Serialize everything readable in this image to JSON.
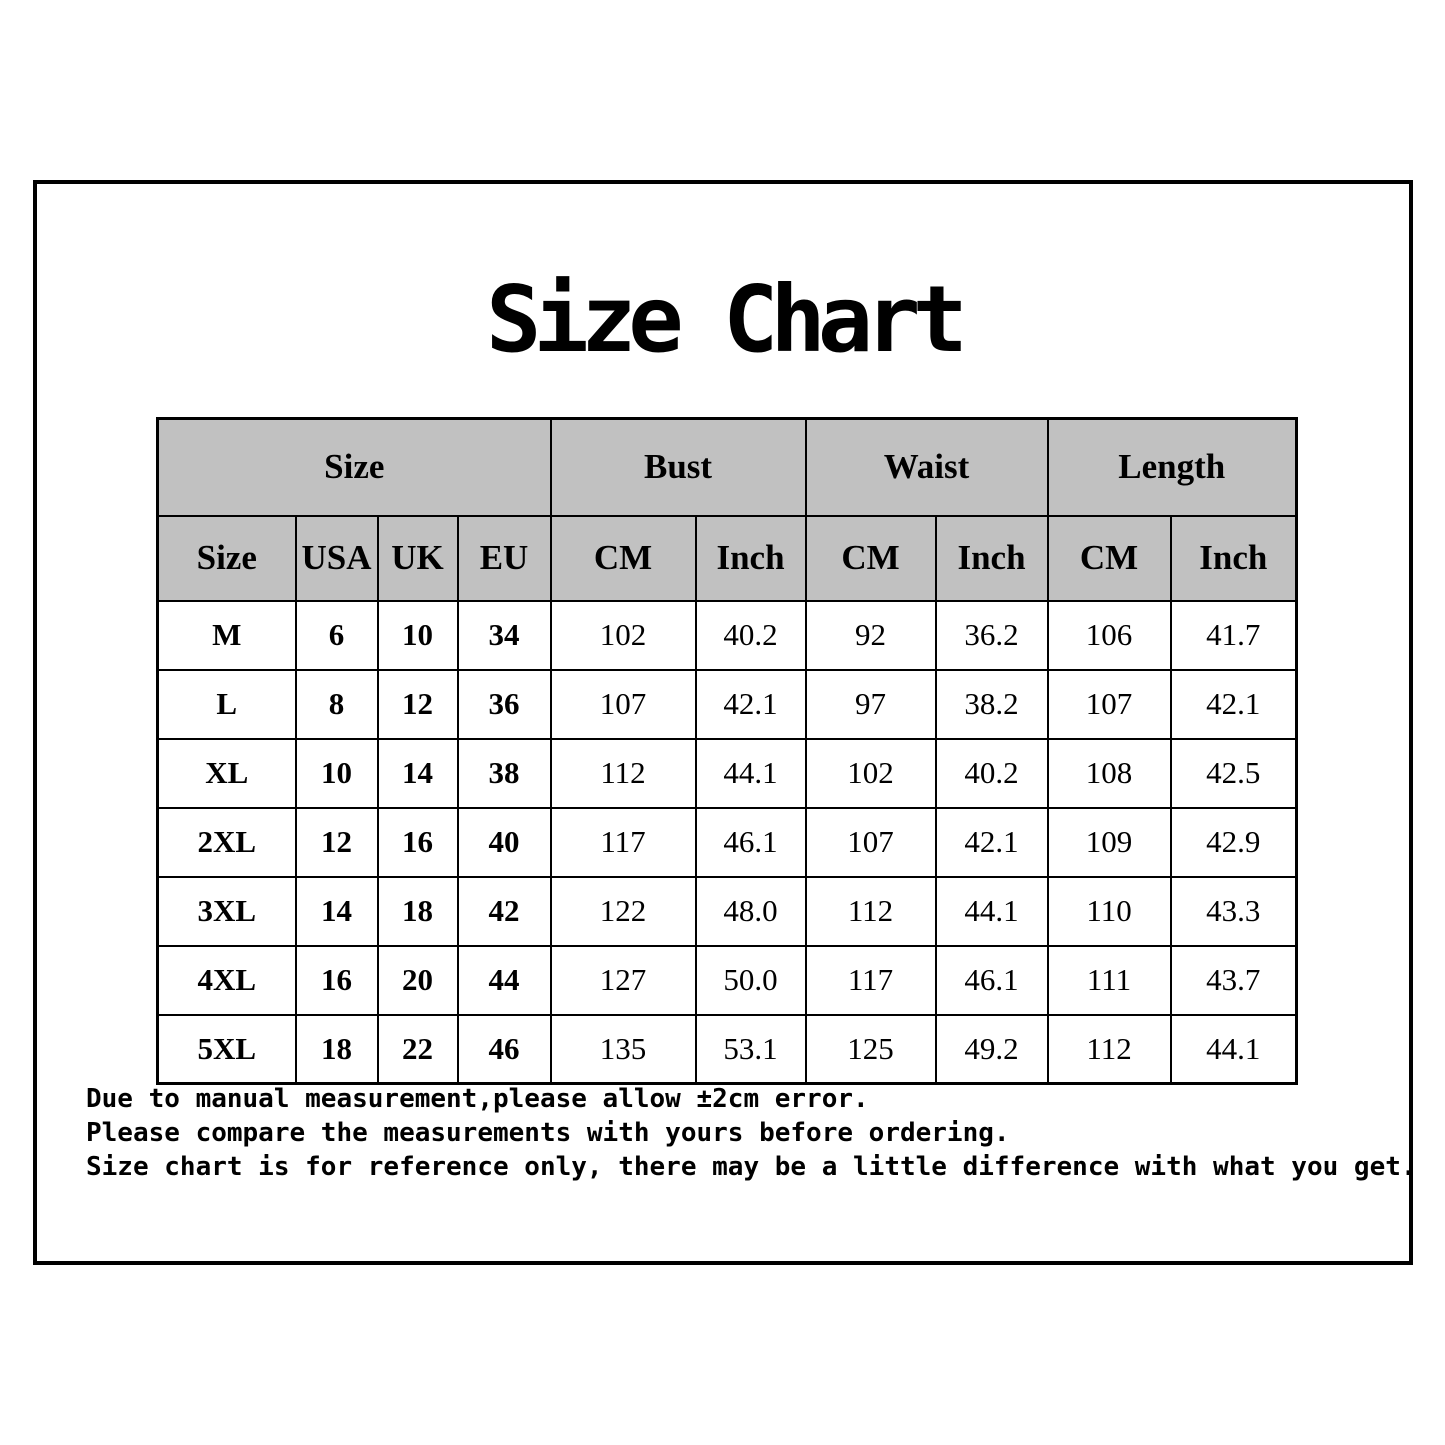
{
  "chart_data": {
    "type": "table",
    "title": "Size Chart",
    "column_groups": [
      {
        "label": "Size",
        "span": 4
      },
      {
        "label": "Bust",
        "span": 2
      },
      {
        "label": "Waist",
        "span": 2
      },
      {
        "label": "Length",
        "span": 2
      }
    ],
    "columns": [
      "Size",
      "USA",
      "UK",
      "EU",
      "CM",
      "Inch",
      "CM",
      "Inch",
      "CM",
      "Inch"
    ],
    "rows": [
      [
        "M",
        "6",
        "10",
        "34",
        "102",
        "40.2",
        "92",
        "36.2",
        "106",
        "41.7"
      ],
      [
        "L",
        "8",
        "12",
        "36",
        "107",
        "42.1",
        "97",
        "38.2",
        "107",
        "42.1"
      ],
      [
        "XL",
        "10",
        "14",
        "38",
        "112",
        "44.1",
        "102",
        "40.2",
        "108",
        "42.5"
      ],
      [
        "2XL",
        "12",
        "16",
        "40",
        "117",
        "46.1",
        "107",
        "42.1",
        "109",
        "42.9"
      ],
      [
        "3XL",
        "14",
        "18",
        "42",
        "122",
        "48.0",
        "112",
        "44.1",
        "110",
        "43.3"
      ],
      [
        "4XL",
        "16",
        "20",
        "44",
        "127",
        "50.0",
        "117",
        "46.1",
        "111",
        "43.7"
      ],
      [
        "5XL",
        "18",
        "22",
        "46",
        "135",
        "53.1",
        "125",
        "49.2",
        "112",
        "44.1"
      ]
    ]
  },
  "notes": [
    "Due to manual measurement,please allow ±2cm error.",
    "Please compare the measurements with yours before ordering.",
    "Size chart is for reference only, there may be a little difference with what you get."
  ],
  "colors": {
    "header_background": "#c1c1c1",
    "border": "#000000",
    "text": "#000000",
    "page_background": "#ffffff"
  }
}
